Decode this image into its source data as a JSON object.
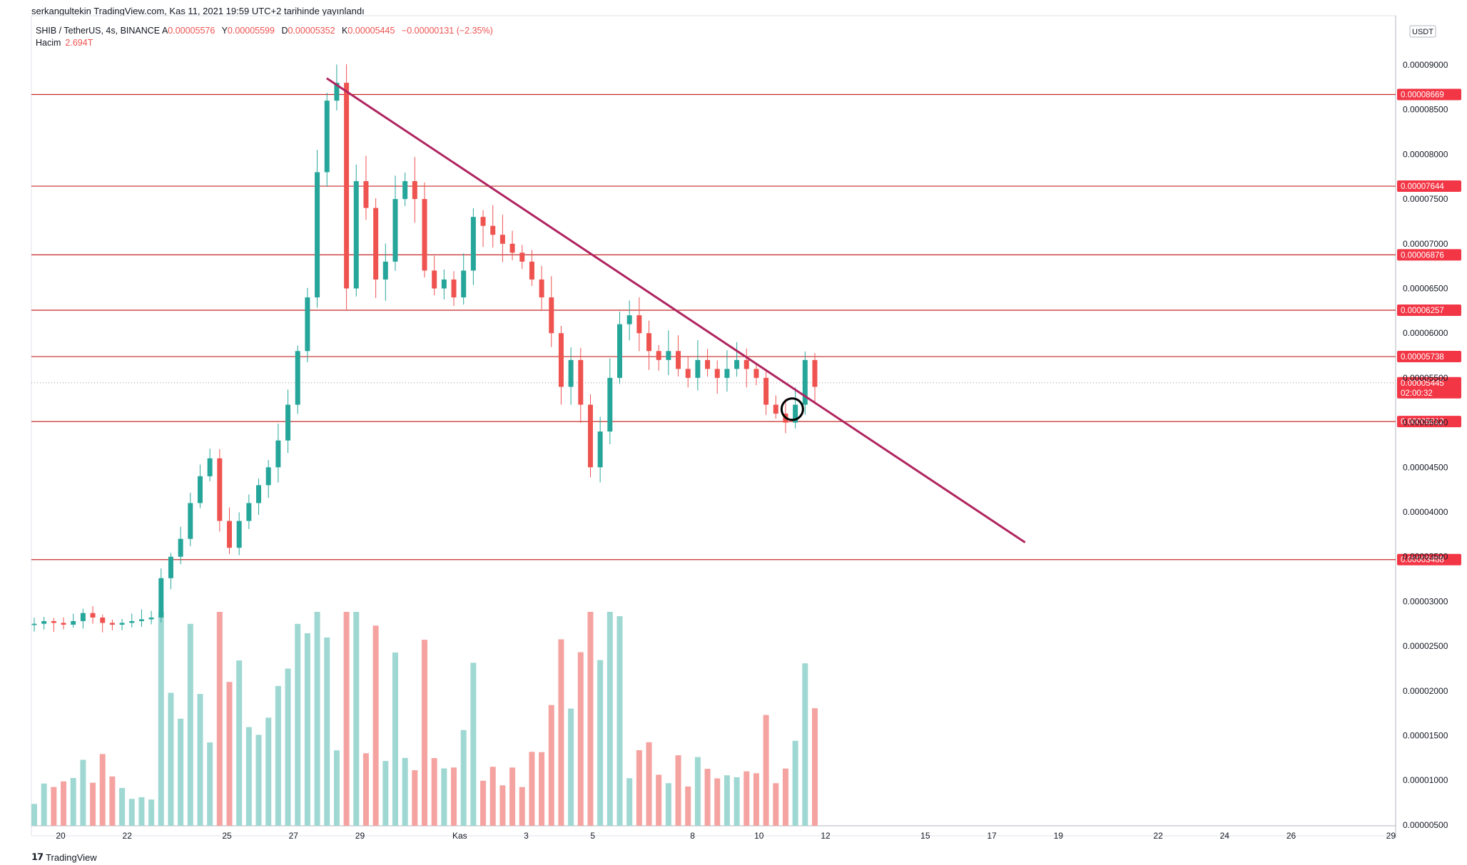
{
  "header": {
    "published_by": "serkangultekin TradingView.com, Kas 11, 2021 19:59 UTC+2 tarihinde yayınlandı"
  },
  "symbol_info": {
    "symbol": "SHIB / TetherUS, 4s, BINANCE",
    "open_label": "A",
    "open": "0.00005576",
    "high_label": "Y",
    "high": "0.00005599",
    "low_label": "D",
    "low": "0.00005352",
    "close_label": "K",
    "close": "0.00005445",
    "change": "−0.00000131 (−2.35%)"
  },
  "volume_info": {
    "label": "Hacim",
    "value": "2.694T"
  },
  "footer": {
    "brand": "TradingView",
    "logo": "tradingview-logo-icon"
  },
  "colors": {
    "up": "#26a69a",
    "down": "#ef5350",
    "volume_up": "#9fd8d2",
    "volume_down": "#f5a3a1",
    "level_line": "#c62828",
    "trendline": "#b0245f",
    "marker": "#000000"
  },
  "chart_data": {
    "type": "candlestick",
    "currency": "USDT",
    "y_axis_ticks": [
      "0.00009000",
      "0.00008500",
      "0.00008000",
      "0.00007500",
      "0.00007000",
      "0.00006500",
      "0.00006000",
      "0.00005500",
      "0.00005000",
      "0.00004500",
      "0.00004000",
      "0.00003500",
      "0.00003000",
      "0.00002500",
      "0.00002000",
      "0.00001500",
      "0.00001000",
      "0.00000500"
    ],
    "x_axis_ticks": [
      "20",
      "22",
      "25",
      "27",
      "29",
      "Kas",
      "3",
      "5",
      "8",
      "10",
      "12",
      "15",
      "17",
      "19",
      "22",
      "24",
      "26",
      "29"
    ],
    "horizontal_levels": [
      "0.00008669",
      "0.00007644",
      "0.00006876",
      "0.00006257",
      "0.00005738",
      "0.00005012",
      "0.00003468"
    ],
    "last_price": "0.00005445",
    "countdown": "02:00:32",
    "trendline": {
      "from": {
        "date": "Oct 28",
        "price": 8.85e-05
      },
      "to": {
        "date": "Nov 18",
        "price": 3.66e-05
      }
    },
    "marker": {
      "date": "Nov 11",
      "price": 5.15e-05,
      "shape": "circle"
    },
    "candles_close_path": [
      2.75e-05,
      2.78e-05,
      2.76e-05,
      2.74e-05,
      2.78e-05,
      2.87e-05,
      2.82e-05,
      2.76e-05,
      2.74e-05,
      2.76e-05,
      2.78e-05,
      2.8e-05,
      2.82e-05,
      3.26e-05,
      3.5e-05,
      3.7e-05,
      4.1e-05,
      4.4e-05,
      4.6e-05,
      3.9e-05,
      3.6e-05,
      3.9e-05,
      4.1e-05,
      4.3e-05,
      4.5e-05,
      4.8e-05,
      5.2e-05,
      5.8e-05,
      6.4e-05,
      7.8e-05,
      8.6e-05,
      8.8e-05,
      6.5e-05,
      7.7e-05,
      7.4e-05,
      6.6e-05,
      6.8e-05,
      7.5e-05,
      7.7e-05,
      7.5e-05,
      6.7e-05,
      6.5e-05,
      6.6e-05,
      6.4e-05,
      6.7e-05,
      7.3e-05,
      7.2e-05,
      7.1e-05,
      7e-05,
      6.9e-05,
      6.8e-05,
      6.6e-05,
      6.4e-05,
      6e-05,
      5.4e-05,
      5.7e-05,
      5.2e-05,
      4.5e-05,
      4.9e-05,
      5.5e-05,
      6.1e-05,
      6.2e-05,
      6e-05,
      5.8e-05,
      5.7e-05,
      5.8e-05,
      5.6e-05,
      5.5e-05,
      5.7e-05,
      5.6e-05,
      5.5e-05,
      5.6e-05,
      5.7e-05,
      5.6e-05,
      5.5e-05,
      5.2e-05,
      5.1e-05,
      5e-05,
      5.2e-05,
      5.7e-05,
      5.4e-05
    ],
    "volume_units": "relative"
  }
}
